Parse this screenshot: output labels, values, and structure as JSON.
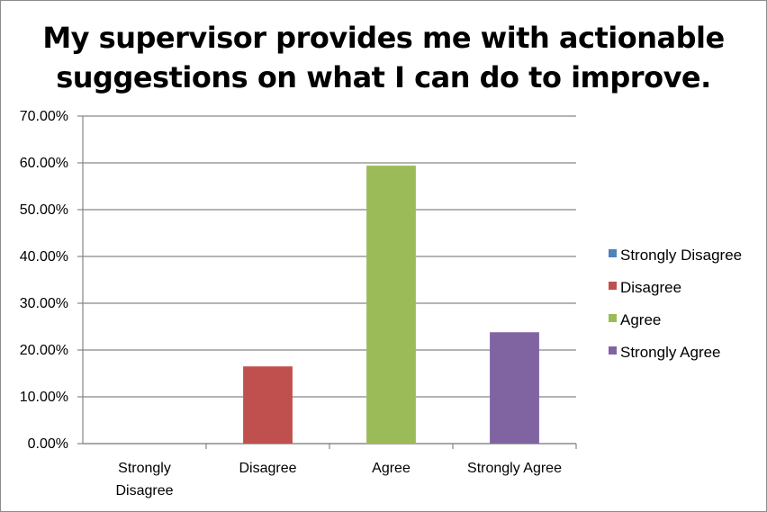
{
  "chart_data": {
    "type": "bar",
    "title_lines": [
      "My supervisor provides me with actionable",
      "suggestions on what I can do to improve."
    ],
    "categories": [
      [
        "Strongly",
        "Disagree"
      ],
      [
        "Disagree"
      ],
      [
        "Agree"
      ],
      [
        "Strongly Agree"
      ]
    ],
    "values": [
      0.0,
      16.5,
      59.4,
      23.8
    ],
    "colors": [
      "#4f81bd",
      "#c0504d",
      "#9bbb59",
      "#8064a2"
    ],
    "ylim": [
      0,
      70
    ],
    "y_ticks": [
      "0.00%",
      "10.00%",
      "20.00%",
      "30.00%",
      "40.00%",
      "50.00%",
      "60.00%",
      "70.00%"
    ],
    "grid": true,
    "legend": {
      "placement": "right",
      "entries": [
        "Strongly Disagree",
        "Disagree",
        "Agree",
        "Strongly Agree"
      ]
    }
  }
}
